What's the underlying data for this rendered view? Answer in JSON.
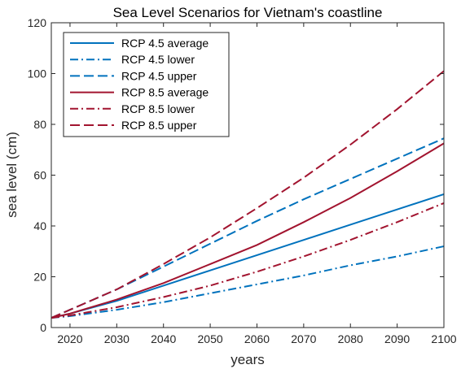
{
  "chart_data": {
    "type": "line",
    "title": "Sea Level Scenarios for Vietnam's coastline",
    "xlabel": "years",
    "ylabel": "sea level (cm)",
    "xlim": [
      2016,
      2100
    ],
    "ylim": [
      0,
      120
    ],
    "xticks": [
      2020,
      2030,
      2040,
      2050,
      2060,
      2070,
      2080,
      2090,
      2100
    ],
    "yticks": [
      0,
      20,
      40,
      60,
      80,
      100,
      120
    ],
    "grid": false,
    "legend_position": "top-left",
    "x": [
      2016,
      2020,
      2030,
      2040,
      2050,
      2060,
      2070,
      2080,
      2090,
      2100
    ],
    "series": [
      {
        "name": "RCP 4.5 average",
        "color": "#0072BD",
        "dash": "solid",
        "values": [
          3.8,
          5.5,
          10.5,
          16.5,
          22.5,
          28.5,
          34.5,
          40.5,
          46.5,
          52.5
        ]
      },
      {
        "name": "RCP 4.5 lower",
        "color": "#0072BD",
        "dash": "dashdot",
        "values": [
          3.8,
          4.5,
          7.0,
          10.0,
          13.5,
          17.0,
          20.5,
          24.5,
          28.0,
          32.0
        ]
      },
      {
        "name": "RCP 4.5 upper",
        "color": "#0072BD",
        "dash": "dashed",
        "values": [
          3.8,
          7.0,
          15.0,
          24.0,
          33.0,
          42.0,
          50.5,
          58.5,
          66.5,
          74.5
        ]
      },
      {
        "name": "RCP 8.5 average",
        "color": "#A2142F",
        "dash": "solid",
        "values": [
          3.8,
          5.5,
          11.0,
          17.5,
          25.0,
          32.5,
          41.5,
          51.0,
          61.5,
          72.5
        ]
      },
      {
        "name": "RCP 8.5 lower",
        "color": "#A2142F",
        "dash": "dashdot",
        "values": [
          3.8,
          4.8,
          8.0,
          12.0,
          16.5,
          22.0,
          28.0,
          34.5,
          41.5,
          49.0
        ]
      },
      {
        "name": "RCP 8.5 upper",
        "color": "#A2142F",
        "dash": "dashed",
        "values": [
          3.8,
          7.0,
          15.0,
          25.0,
          35.5,
          47.0,
          59.0,
          72.0,
          86.0,
          101.0
        ]
      }
    ]
  }
}
